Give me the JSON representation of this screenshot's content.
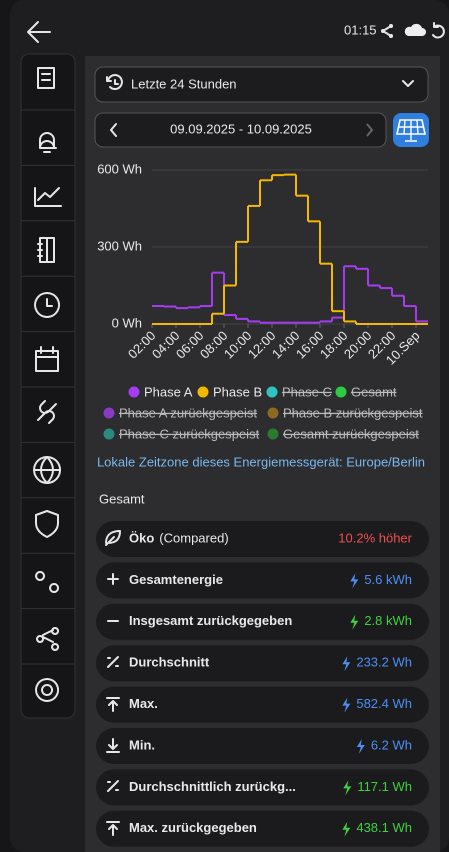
{
  "status_bar": {
    "time": "01:15"
  },
  "range_select": {
    "label": "Letzte 24 Stunden"
  },
  "date_range": {
    "label": "09.09.2025 - 10.09.2025"
  },
  "chart_data": {
    "type": "step",
    "x": [
      2,
      3,
      4,
      5,
      6,
      7,
      8,
      9,
      10,
      11,
      12,
      13,
      14,
      15,
      16,
      17,
      18,
      19,
      20,
      21,
      22,
      23,
      24
    ],
    "xlim": [
      2,
      25
    ],
    "xticks": [
      {
        "value": 2,
        "label": "02:00"
      },
      {
        "value": 4,
        "label": "04:00"
      },
      {
        "value": 6,
        "label": "06:00"
      },
      {
        "value": 8,
        "label": "08:00"
      },
      {
        "value": 10,
        "label": "10:00"
      },
      {
        "value": 12,
        "label": "12:00"
      },
      {
        "value": 14,
        "label": "14:00"
      },
      {
        "value": 16,
        "label": "16:00"
      },
      {
        "value": 18,
        "label": "18:00"
      },
      {
        "value": 20,
        "label": "20:00"
      },
      {
        "value": 22,
        "label": "22:00"
      },
      {
        "value": 24,
        "label": "10.Sep"
      }
    ],
    "ylim": [
      0,
      600
    ],
    "yticks": [
      {
        "value": 0,
        "label": "0 Wh"
      },
      {
        "value": 300,
        "label": "300 Wh"
      },
      {
        "value": 600,
        "label": "600 Wh"
      }
    ],
    "grid": true,
    "series": [
      {
        "name": "Phase A",
        "color": "#a63cf2",
        "values": [
          70,
          68,
          62,
          65,
          70,
          200,
          35,
          20,
          10,
          5,
          5,
          5,
          5,
          5,
          10,
          25,
          225,
          215,
          150,
          140,
          110,
          70,
          10
        ]
      },
      {
        "name": "Phase B",
        "color": "#f5b800",
        "values": [
          0,
          0,
          0,
          0,
          0,
          40,
          150,
          320,
          460,
          560,
          580,
          582,
          500,
          400,
          235,
          50,
          10,
          0,
          0,
          0,
          0,
          0,
          0
        ]
      }
    ],
    "disabled_legend": [
      {
        "name": "Phase C",
        "color": "#2ec4c4"
      },
      {
        "name": "Gesamt",
        "color": "#2ecc40"
      },
      {
        "name": "Phase A zurückgespeist",
        "color": "#8a3cc0"
      },
      {
        "name": "Phase B zurückgespeist",
        "color": "#8a6a20"
      },
      {
        "name": "Phase C zurückgespeist",
        "color": "#2a8a80"
      },
      {
        "name": "Gesamt zurückgespeist",
        "color": "#2a7a30"
      }
    ],
    "note": "Lokale Zeitzone dieses Energiemessgerät: Europe/Berlin"
  },
  "summary": {
    "title": "Gesamt",
    "rows": [
      {
        "label": "Öko",
        "sub": "(Compared)",
        "value": "10.2% höher",
        "tone": "red"
      },
      {
        "label": "Gesamtenergie",
        "value": "5.6 kWh",
        "tone": "blue"
      },
      {
        "label": "Insgesamt zurückgegeben",
        "value": "2.8 kWh",
        "tone": "green"
      },
      {
        "label": "Durchschnitt",
        "value": "233.2 Wh",
        "tone": "blue"
      },
      {
        "label": "Max.",
        "value": "582.4 Wh",
        "tone": "blue"
      },
      {
        "label": "Min.",
        "value": "6.2 Wh",
        "tone": "blue"
      },
      {
        "label": "Durchschnittlich zurückg...",
        "value": "117.1 Wh",
        "tone": "green"
      },
      {
        "label": "Max. zurückgegeben",
        "value": "438.1 Wh",
        "tone": "green"
      }
    ]
  }
}
